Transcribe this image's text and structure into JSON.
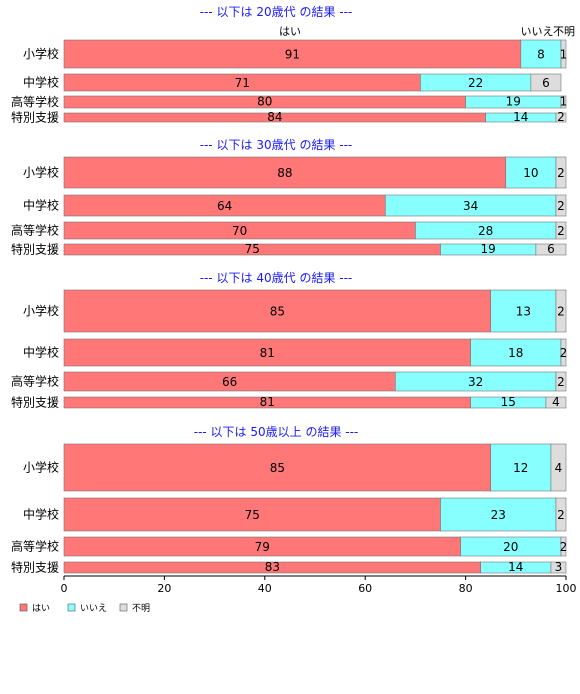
{
  "chart_data": {
    "type": "bar",
    "orientation": "horizontal",
    "stacked": true,
    "xlim": [
      0,
      100
    ],
    "x_ticks": [
      "0",
      "20",
      "40",
      "60",
      "80",
      "100"
    ],
    "legend_position": "bottom-left",
    "series_names": [
      "はい",
      "いいえ",
      "不明"
    ],
    "series_header_labels": [
      "はい",
      "いいえ",
      "不明"
    ],
    "colors": [
      "#ff7777",
      "#88ffff",
      "#dddddd"
    ],
    "groups": [
      {
        "title": "--- 以下は 20歳代 の結果 ---",
        "rows": [
          {
            "category": "小学校",
            "values": [
              91,
              8,
              1
            ]
          },
          {
            "category": "中学校",
            "values": [
              71,
              22,
              6
            ]
          },
          {
            "category": "高等学校",
            "values": [
              80,
              19,
              1
            ]
          },
          {
            "category": "特別支援",
            "values": [
              84,
              14,
              2
            ]
          }
        ]
      },
      {
        "title": "--- 以下は 30歳代 の結果 ---",
        "rows": [
          {
            "category": "小学校",
            "values": [
              88,
              10,
              2
            ]
          },
          {
            "category": "中学校",
            "values": [
              64,
              34,
              2
            ]
          },
          {
            "category": "高等学校",
            "values": [
              70,
              28,
              2
            ]
          },
          {
            "category": "特別支援",
            "values": [
              75,
              19,
              6
            ]
          }
        ]
      },
      {
        "title": "--- 以下は 40歳代 の結果 ---",
        "rows": [
          {
            "category": "小学校",
            "values": [
              85,
              13,
              2
            ]
          },
          {
            "category": "中学校",
            "values": [
              81,
              18,
              2
            ]
          },
          {
            "category": "高等学校",
            "values": [
              66,
              32,
              2
            ]
          },
          {
            "category": "特別支援",
            "values": [
              81,
              15,
              4
            ]
          }
        ]
      },
      {
        "title": "--- 以下は 50歳以上 の結果 ---",
        "rows": [
          {
            "category": "小学校",
            "values": [
              85,
              12,
              4
            ]
          },
          {
            "category": "中学校",
            "values": [
              75,
              23,
              2
            ]
          },
          {
            "category": "高等学校",
            "values": [
              79,
              20,
              2
            ]
          },
          {
            "category": "特別支援",
            "values": [
              83,
              14,
              3
            ]
          }
        ]
      }
    ]
  }
}
